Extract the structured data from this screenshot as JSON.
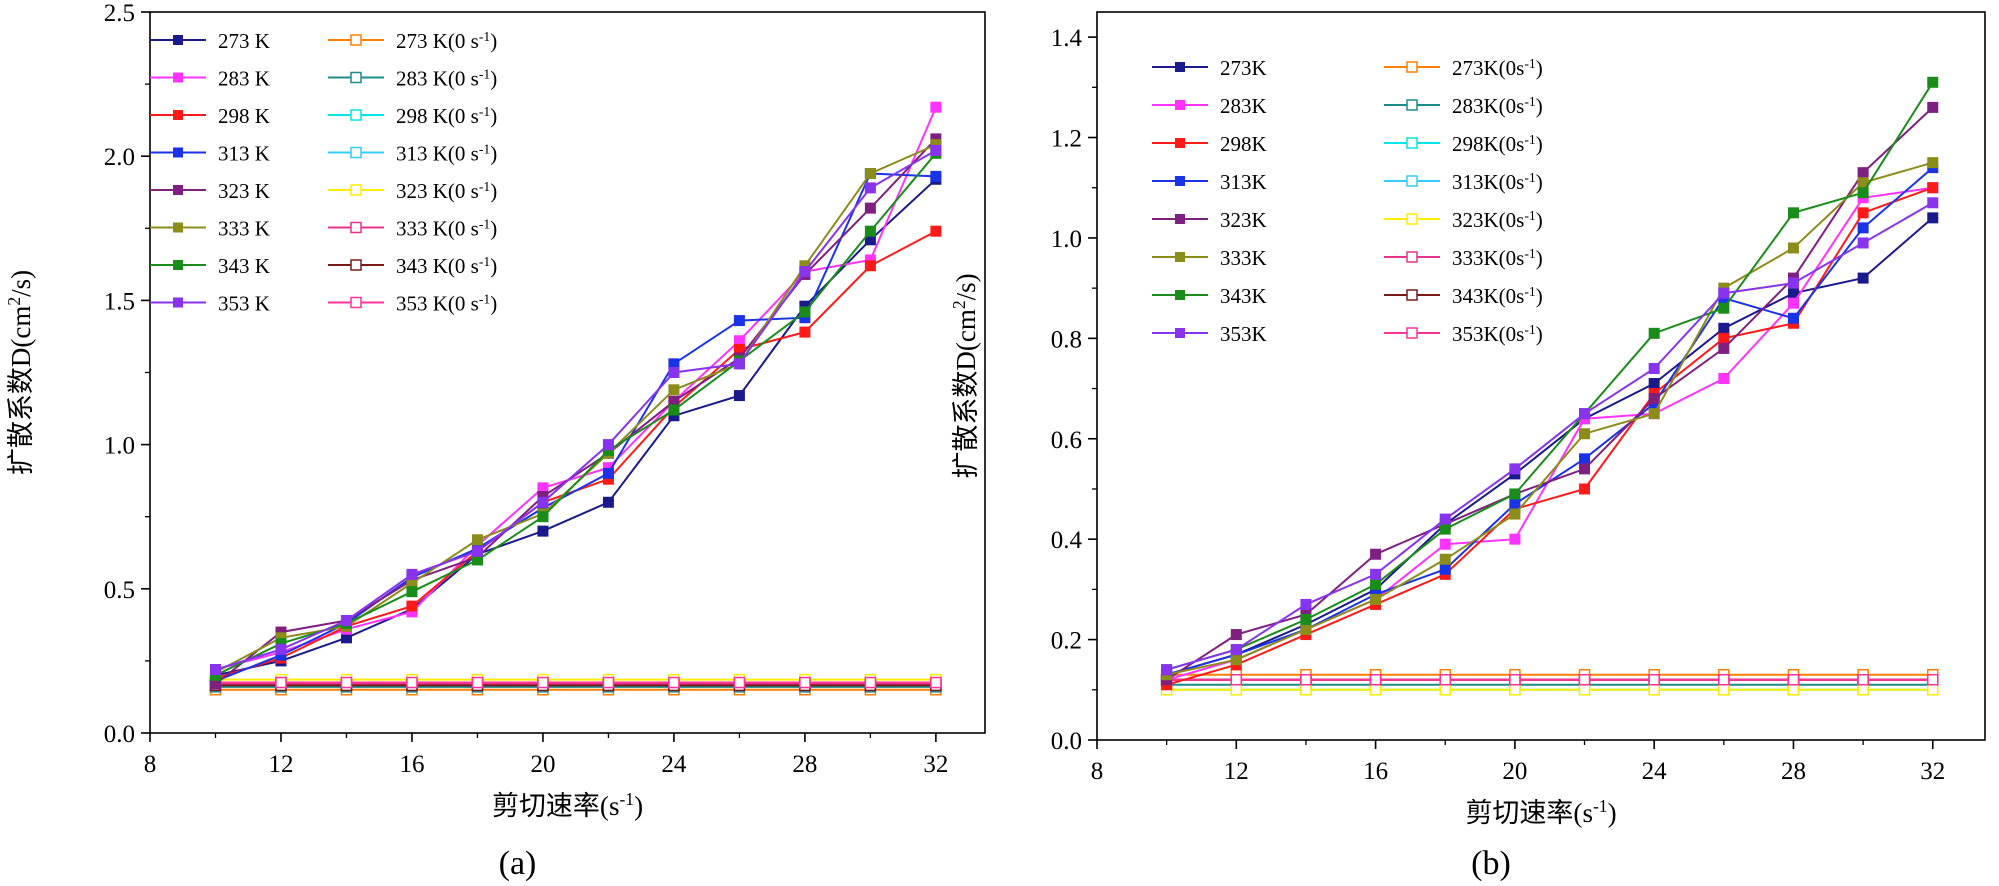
{
  "panels": [
    {
      "label": "(a)",
      "chart_data": {
        "type": "line",
        "title": "",
        "xlabel": "剪切速率(s-1)",
        "ylabel": "扩散系数D(cm2/s)",
        "xlim": [
          8,
          33.5
        ],
        "ylim": [
          0,
          2.5
        ],
        "xticks": [
          8,
          12,
          16,
          20,
          24,
          28,
          32
        ],
        "yticks": [
          0.0,
          0.5,
          1.0,
          1.5,
          2.0,
          2.5
        ],
        "ytick_decimals": 1,
        "grid": false,
        "legend_position": "top-left",
        "x": [
          10,
          12,
          14,
          16,
          18,
          20,
          22,
          24,
          26,
          28,
          30,
          32
        ],
        "series": [
          {
            "name": "273 K",
            "color": "#1a1a8c",
            "marker": "filled-square",
            "values": [
              0.2,
              0.25,
              0.33,
              0.43,
              0.62,
              0.7,
              0.8,
              1.1,
              1.17,
              1.48,
              1.71,
              1.92
            ]
          },
          {
            "name": "283 K",
            "color": "#ff33ff",
            "marker": "filled-square",
            "values": [
              0.22,
              0.28,
              0.36,
              0.42,
              0.65,
              0.85,
              0.92,
              1.15,
              1.36,
              1.6,
              1.64,
              2.17
            ]
          },
          {
            "name": "298 K",
            "color": "#ff1a1a",
            "marker": "filled-square",
            "values": [
              0.19,
              0.26,
              0.37,
              0.44,
              0.63,
              0.8,
              0.88,
              1.13,
              1.33,
              1.39,
              1.62,
              1.74
            ]
          },
          {
            "name": "313 K",
            "color": "#1a33e6",
            "marker": "filled-square",
            "values": [
              0.18,
              0.27,
              0.38,
              0.54,
              0.64,
              0.78,
              0.9,
              1.28,
              1.43,
              1.44,
              1.94,
              1.93
            ]
          },
          {
            "name": "323 K",
            "color": "#7f1f7f",
            "marker": "filled-square",
            "values": [
              0.17,
              0.35,
              0.39,
              0.53,
              0.61,
              0.82,
              0.97,
              1.15,
              1.3,
              1.59,
              1.82,
              2.06
            ]
          },
          {
            "name": "333 K",
            "color": "#8c8c1a",
            "marker": "filled-square",
            "values": [
              0.21,
              0.33,
              0.37,
              0.52,
              0.67,
              0.76,
              0.97,
              1.19,
              1.28,
              1.62,
              1.94,
              2.04
            ]
          },
          {
            "name": "343 K",
            "color": "#1a8c1a",
            "marker": "filled-square",
            "values": [
              0.2,
              0.31,
              0.38,
              0.49,
              0.6,
              0.75,
              0.98,
              1.12,
              1.29,
              1.46,
              1.74,
              2.01
            ]
          },
          {
            "name": "353 K",
            "color": "#8833ee",
            "marker": "filled-square",
            "values": [
              0.22,
              0.29,
              0.39,
              0.55,
              0.63,
              0.8,
              1.0,
              1.25,
              1.28,
              1.6,
              1.89,
              2.02
            ]
          },
          {
            "name": "273 K(0 s-1)",
            "color": "#ff8000",
            "marker": "open-square",
            "values": [
              0.15,
              0.15,
              0.15,
              0.15,
              0.15,
              0.15,
              0.15,
              0.15,
              0.15,
              0.15,
              0.15,
              0.15
            ]
          },
          {
            "name": "283 K(0 s-1)",
            "color": "#1a8c8c",
            "marker": "open-square",
            "values": [
              0.16,
              0.16,
              0.16,
              0.16,
              0.16,
              0.16,
              0.16,
              0.16,
              0.16,
              0.16,
              0.16,
              0.16
            ]
          },
          {
            "name": "298 K(0 s-1)",
            "color": "#00e6e6",
            "marker": "open-square",
            "values": [
              0.17,
              0.17,
              0.17,
              0.17,
              0.17,
              0.17,
              0.17,
              0.17,
              0.17,
              0.17,
              0.17,
              0.17
            ]
          },
          {
            "name": "313 K(0 s-1)",
            "color": "#33ccff",
            "marker": "open-square",
            "values": [
              0.175,
              0.175,
              0.175,
              0.175,
              0.175,
              0.175,
              0.175,
              0.175,
              0.175,
              0.175,
              0.175,
              0.175
            ]
          },
          {
            "name": "323 K(0 s-1)",
            "color": "#ffee00",
            "marker": "open-square",
            "values": [
              0.185,
              0.185,
              0.185,
              0.185,
              0.185,
              0.185,
              0.185,
              0.185,
              0.185,
              0.185,
              0.185,
              0.185
            ]
          },
          {
            "name": "333 K(0 s-1)",
            "color": "#e6338c",
            "marker": "open-square",
            "values": [
              0.17,
              0.17,
              0.17,
              0.17,
              0.17,
              0.17,
              0.17,
              0.17,
              0.17,
              0.17,
              0.17,
              0.17
            ]
          },
          {
            "name": "343 K(0 s-1)",
            "color": "#7a1a1a",
            "marker": "open-square",
            "values": [
              0.165,
              0.165,
              0.165,
              0.165,
              0.165,
              0.165,
              0.165,
              0.165,
              0.165,
              0.165,
              0.165,
              0.165
            ]
          },
          {
            "name": "353 K(0 s-1)",
            "color": "#ff3399",
            "marker": "open-square",
            "values": [
              0.175,
              0.175,
              0.175,
              0.175,
              0.175,
              0.175,
              0.175,
              0.175,
              0.175,
              0.175,
              0.175,
              0.175
            ]
          }
        ]
      }
    },
    {
      "label": "(b)",
      "chart_data": {
        "type": "line",
        "title": "",
        "xlabel": "剪切速率(s-1)",
        "ylabel": "扩散系数D(cm2/s)",
        "xlim": [
          8,
          33.5
        ],
        "ylim": [
          0,
          1.45
        ],
        "xticks": [
          8,
          12,
          16,
          20,
          24,
          28,
          32
        ],
        "yticks": [
          0.0,
          0.2,
          0.4,
          0.6,
          0.8,
          1.0,
          1.2,
          1.4
        ],
        "ytick_decimals": 1,
        "grid": false,
        "legend_position": "top-left",
        "x": [
          10,
          12,
          14,
          16,
          18,
          20,
          22,
          24,
          26,
          28,
          30,
          32
        ],
        "series": [
          {
            "name": "273K",
            "color": "#1a1a8c",
            "marker": "filled-square",
            "values": [
              0.13,
              0.17,
              0.23,
              0.3,
              0.43,
              0.53,
              0.64,
              0.71,
              0.82,
              0.89,
              0.92,
              1.04
            ]
          },
          {
            "name": "283K",
            "color": "#ff33ff",
            "marker": "filled-square",
            "values": [
              0.12,
              0.16,
              0.22,
              0.28,
              0.39,
              0.4,
              0.64,
              0.65,
              0.72,
              0.87,
              1.08,
              1.1
            ]
          },
          {
            "name": "298K",
            "color": "#ff1a1a",
            "marker": "filled-square",
            "values": [
              0.11,
              0.15,
              0.21,
              0.27,
              0.33,
              0.46,
              0.5,
              0.69,
              0.8,
              0.83,
              1.05,
              1.1
            ]
          },
          {
            "name": "313K",
            "color": "#1a33e6",
            "marker": "filled-square",
            "values": [
              0.13,
              0.17,
              0.22,
              0.29,
              0.34,
              0.47,
              0.56,
              0.67,
              0.88,
              0.84,
              1.02,
              1.14
            ]
          },
          {
            "name": "323K",
            "color": "#7f1f7f",
            "marker": "filled-square",
            "values": [
              0.12,
              0.21,
              0.25,
              0.37,
              0.43,
              0.49,
              0.54,
              0.68,
              0.78,
              0.92,
              1.13,
              1.26
            ]
          },
          {
            "name": "333K",
            "color": "#8c8c1a",
            "marker": "filled-square",
            "values": [
              0.13,
              0.16,
              0.22,
              0.28,
              0.36,
              0.45,
              0.61,
              0.65,
              0.9,
              0.98,
              1.11,
              1.15
            ]
          },
          {
            "name": "343K",
            "color": "#1a8c1a",
            "marker": "filled-square",
            "values": [
              0.14,
              0.18,
              0.24,
              0.31,
              0.42,
              0.49,
              0.65,
              0.81,
              0.86,
              1.05,
              1.09,
              1.31
            ]
          },
          {
            "name": "353K",
            "color": "#8833ee",
            "marker": "filled-square",
            "values": [
              0.14,
              0.18,
              0.27,
              0.33,
              0.44,
              0.54,
              0.65,
              0.74,
              0.89,
              0.91,
              0.99,
              1.07
            ]
          },
          {
            "name": "273K(0s-1)",
            "color": "#ff8000",
            "marker": "open-square",
            "values": [
              0.13,
              0.13,
              0.13,
              0.13,
              0.13,
              0.13,
              0.13,
              0.13,
              0.13,
              0.13,
              0.13,
              0.13
            ]
          },
          {
            "name": "283K(0s-1)",
            "color": "#1a8c8c",
            "marker": "open-square",
            "values": [
              0.11,
              0.11,
              0.11,
              0.11,
              0.11,
              0.11,
              0.11,
              0.11,
              0.11,
              0.11,
              0.11,
              0.11
            ]
          },
          {
            "name": "298K(0s-1)",
            "color": "#00e6e6",
            "marker": "open-square",
            "values": [
              0.1,
              0.1,
              0.1,
              0.1,
              0.1,
              0.1,
              0.1,
              0.1,
              0.1,
              0.1,
              0.1,
              0.1
            ]
          },
          {
            "name": "313K(0s-1)",
            "color": "#33ccff",
            "marker": "open-square",
            "values": [
              0.12,
              0.12,
              0.12,
              0.12,
              0.12,
              0.12,
              0.12,
              0.12,
              0.12,
              0.12,
              0.12,
              0.12
            ]
          },
          {
            "name": "323K(0s-1)",
            "color": "#ffee00",
            "marker": "open-square",
            "values": [
              0.1,
              0.1,
              0.1,
              0.1,
              0.1,
              0.1,
              0.1,
              0.1,
              0.1,
              0.1,
              0.1,
              0.1
            ]
          },
          {
            "name": "333K(0s-1)",
            "color": "#e6338c",
            "marker": "open-square",
            "values": [
              0.12,
              0.12,
              0.12,
              0.12,
              0.12,
              0.12,
              0.12,
              0.12,
              0.12,
              0.12,
              0.12,
              0.12
            ]
          },
          {
            "name": "343K(0s-1)",
            "color": "#7a1a1a",
            "marker": "open-square",
            "values": [
              0.12,
              0.12,
              0.12,
              0.12,
              0.12,
              0.12,
              0.12,
              0.12,
              0.12,
              0.12,
              0.12,
              0.12
            ]
          },
          {
            "name": "353K(0s-1)",
            "color": "#ff3399",
            "marker": "open-square",
            "values": [
              0.12,
              0.12,
              0.12,
              0.12,
              0.12,
              0.12,
              0.12,
              0.12,
              0.12,
              0.12,
              0.12,
              0.12
            ]
          }
        ]
      }
    }
  ]
}
